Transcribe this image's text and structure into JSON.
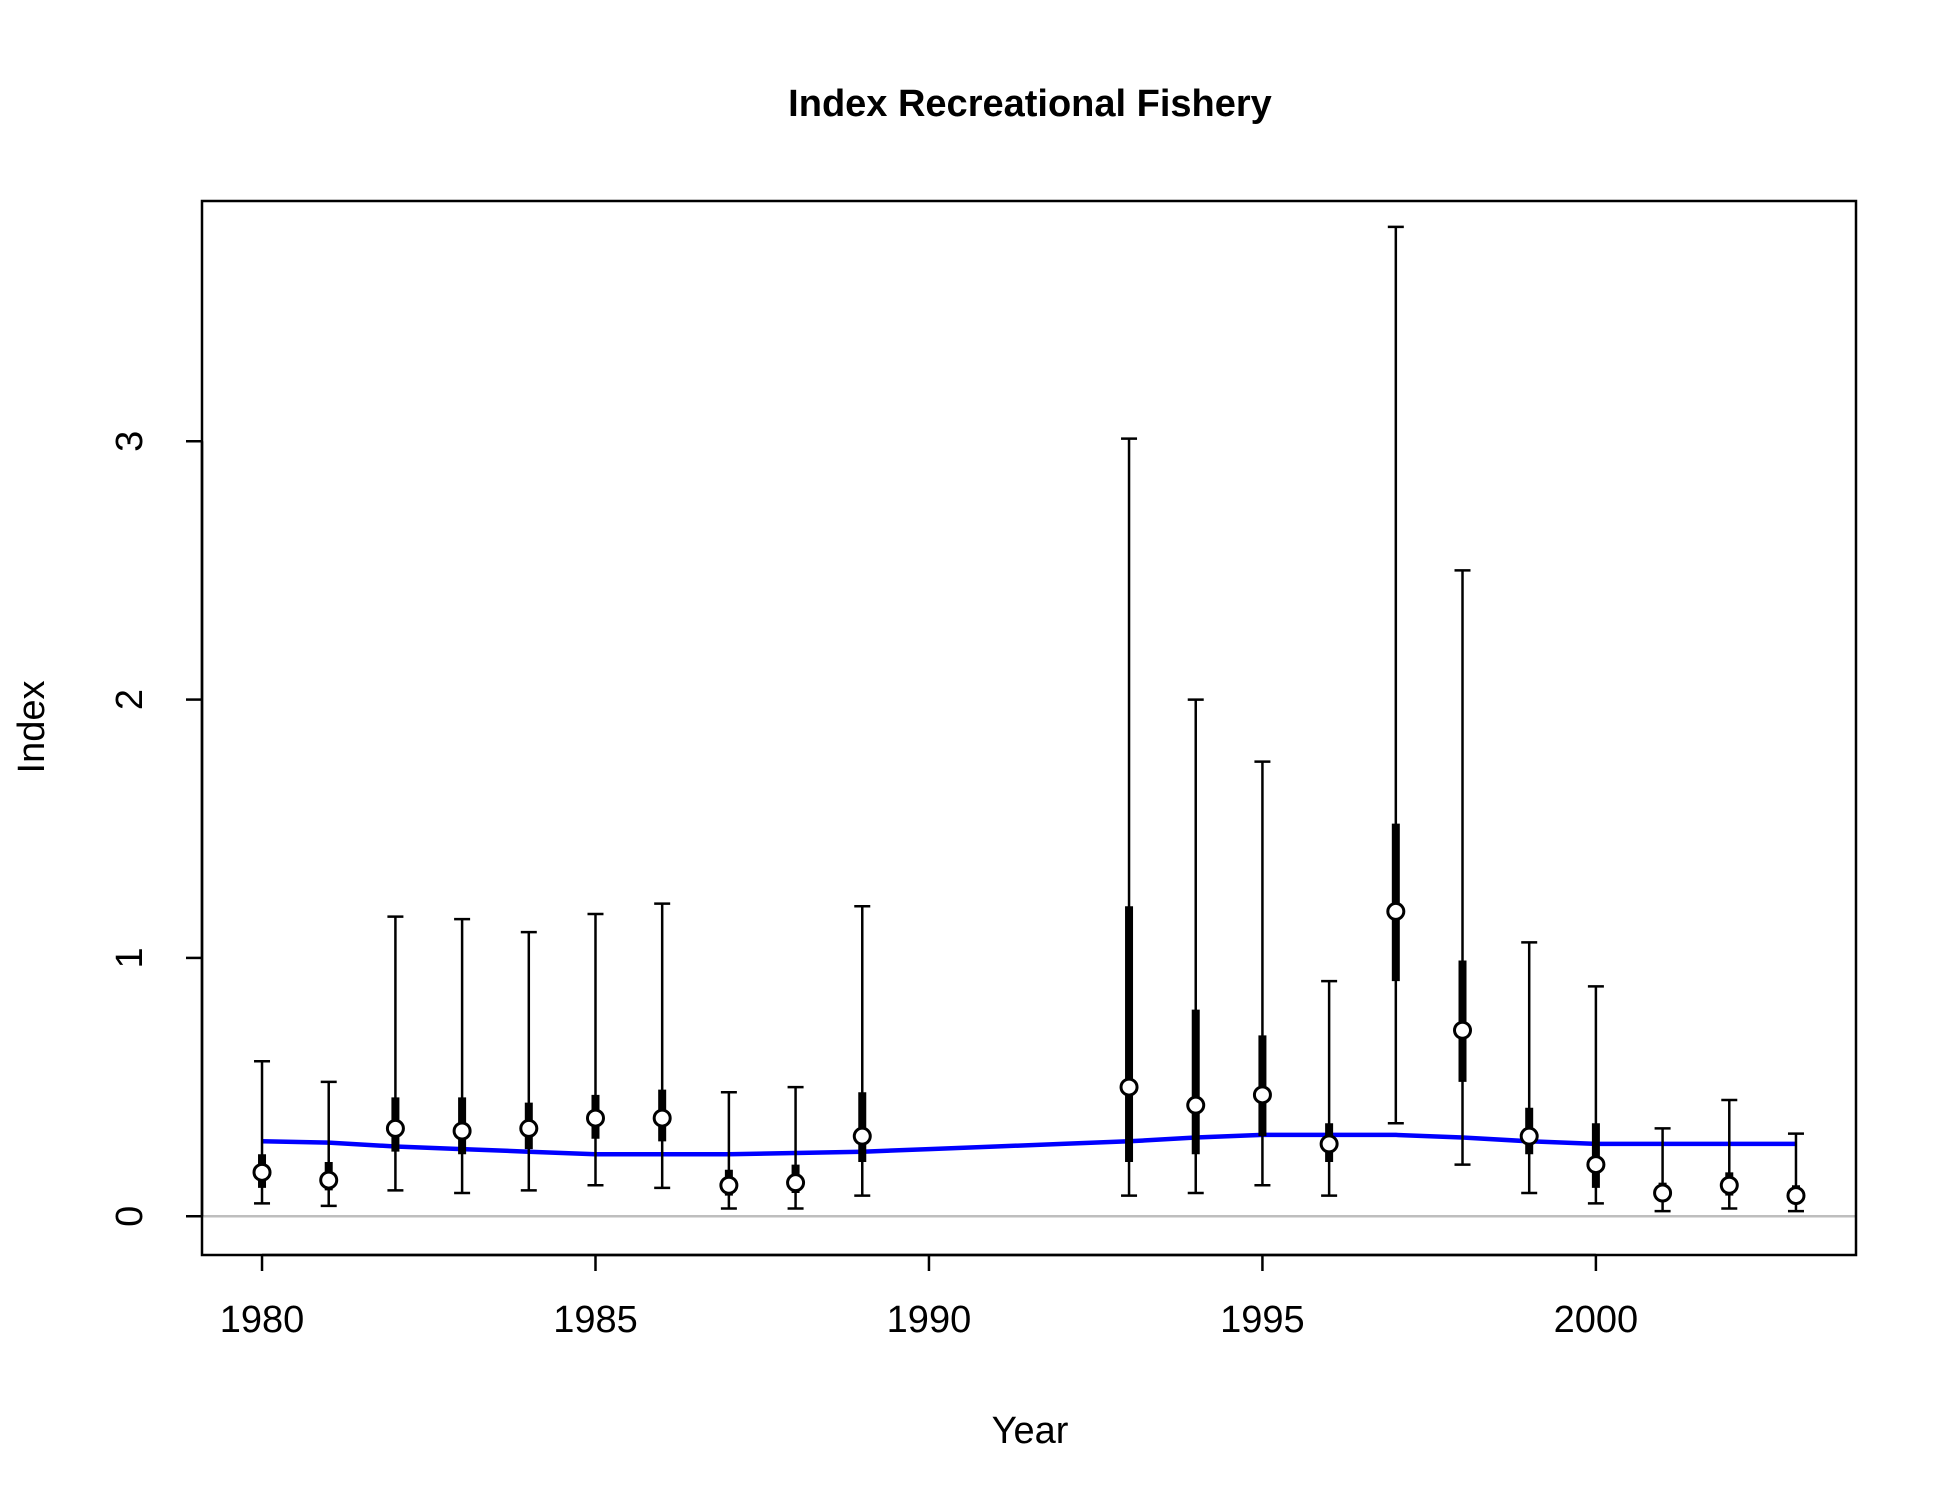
{
  "chart_data": {
    "type": "scatter",
    "title": "Index Recreational Fishery",
    "xlabel": "Year",
    "ylabel": "Index",
    "xlim": [
      1979.1,
      2003.9
    ],
    "ylim": [
      -0.15,
      3.93
    ],
    "x_ticks": [
      1980,
      1985,
      1990,
      1995,
      2000
    ],
    "y_ticks": [
      0,
      1,
      2,
      3
    ],
    "reference_line_y": 0,
    "grid": false,
    "legend": "none",
    "colors": {
      "observed": "#000000",
      "point_fill": "#ffffff",
      "expected_line": "#0000ff",
      "zero_line": "#bebebe"
    },
    "series": [
      {
        "type": "points_with_intervals",
        "points": [
          {
            "year": 1980,
            "value": 0.17,
            "ci95": [
              0.05,
              0.6
            ],
            "ci_inner": [
              0.11,
              0.24
            ]
          },
          {
            "year": 1981,
            "value": 0.14,
            "ci95": [
              0.04,
              0.52
            ],
            "ci_inner": [
              0.1,
              0.21
            ]
          },
          {
            "year": 1982,
            "value": 0.34,
            "ci95": [
              0.1,
              1.16
            ],
            "ci_inner": [
              0.25,
              0.46
            ]
          },
          {
            "year": 1983,
            "value": 0.33,
            "ci95": [
              0.09,
              1.15
            ],
            "ci_inner": [
              0.24,
              0.46
            ]
          },
          {
            "year": 1984,
            "value": 0.34,
            "ci95": [
              0.1,
              1.1
            ],
            "ci_inner": [
              0.26,
              0.44
            ]
          },
          {
            "year": 1985,
            "value": 0.38,
            "ci95": [
              0.12,
              1.17
            ],
            "ci_inner": [
              0.3,
              0.47
            ]
          },
          {
            "year": 1986,
            "value": 0.38,
            "ci95": [
              0.11,
              1.21
            ],
            "ci_inner": [
              0.29,
              0.49
            ]
          },
          {
            "year": 1987,
            "value": 0.12,
            "ci95": [
              0.03,
              0.48
            ],
            "ci_inner": [
              0.08,
              0.18
            ]
          },
          {
            "year": 1988,
            "value": 0.13,
            "ci95": [
              0.03,
              0.5
            ],
            "ci_inner": [
              0.09,
              0.2
            ]
          },
          {
            "year": 1989,
            "value": 0.31,
            "ci95": [
              0.08,
              1.2
            ],
            "ci_inner": [
              0.21,
              0.48
            ]
          },
          {
            "year": 1993,
            "value": 0.5,
            "ci95": [
              0.08,
              3.01
            ],
            "ci_inner": [
              0.21,
              1.2
            ]
          },
          {
            "year": 1994,
            "value": 0.43,
            "ci95": [
              0.09,
              2.0
            ],
            "ci_inner": [
              0.24,
              0.8
            ]
          },
          {
            "year": 1995,
            "value": 0.47,
            "ci95": [
              0.12,
              1.76
            ],
            "ci_inner": [
              0.31,
              0.7
            ]
          },
          {
            "year": 1996,
            "value": 0.28,
            "ci95": [
              0.08,
              0.91
            ],
            "ci_inner": [
              0.21,
              0.36
            ]
          },
          {
            "year": 1997,
            "value": 1.18,
            "ci95": [
              0.36,
              3.83
            ],
            "ci_inner": [
              0.91,
              1.52
            ]
          },
          {
            "year": 1998,
            "value": 0.72,
            "ci95": [
              0.2,
              2.5
            ],
            "ci_inner": [
              0.52,
              0.99
            ]
          },
          {
            "year": 1999,
            "value": 0.31,
            "ci95": [
              0.09,
              1.06
            ],
            "ci_inner": [
              0.24,
              0.42
            ]
          },
          {
            "year": 2000,
            "value": 0.2,
            "ci95": [
              0.05,
              0.89
            ],
            "ci_inner": [
              0.11,
              0.36
            ]
          },
          {
            "year": 2001,
            "value": 0.09,
            "ci95": [
              0.02,
              0.34
            ],
            "ci_inner": [
              0.07,
              0.13
            ]
          },
          {
            "year": 2002,
            "value": 0.12,
            "ci95": [
              0.03,
              0.45
            ],
            "ci_inner": [
              0.08,
              0.17
            ]
          },
          {
            "year": 2003,
            "value": 0.08,
            "ci95": [
              0.02,
              0.32
            ],
            "ci_inner": [
              0.06,
              0.12
            ]
          }
        ]
      },
      {
        "type": "line",
        "x": [
          1980,
          1981,
          1982,
          1983,
          1984,
          1985,
          1986,
          1987,
          1988,
          1989,
          1990,
          1991,
          1992,
          1993,
          1994,
          1995,
          1996,
          1997,
          1998,
          1999,
          2000,
          2001,
          2002,
          2003
        ],
        "y": [
          0.29,
          0.285,
          0.27,
          0.26,
          0.25,
          0.24,
          0.24,
          0.24,
          0.245,
          0.25,
          0.26,
          0.27,
          0.28,
          0.29,
          0.305,
          0.315,
          0.315,
          0.315,
          0.305,
          0.29,
          0.28,
          0.28,
          0.28,
          0.28
        ]
      }
    ]
  }
}
